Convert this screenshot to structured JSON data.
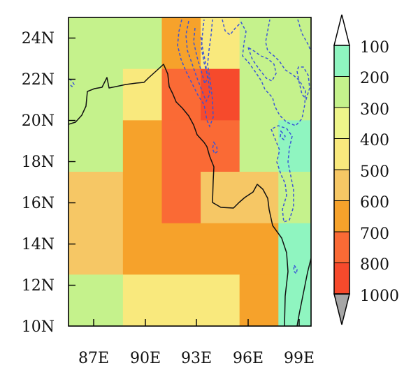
{
  "map": {
    "lat_ticks": [
      "24N",
      "22N",
      "20N",
      "18N",
      "16N",
      "14N",
      "12N",
      "10N"
    ],
    "lon_ticks": [
      "87E",
      "90E",
      "93E",
      "96E",
      "99E"
    ],
    "lat_range": [
      10,
      25
    ],
    "lon_range": [
      84.0,
      99.6
    ],
    "grid_spacing_deg": 2.5,
    "gridlines": false,
    "cells": [
      {
        "lon0": 84.0,
        "lon1": 87.5,
        "lat0": 22.5,
        "lat1": 25.0,
        "bin": 2
      },
      {
        "lon0": 87.5,
        "lon1": 90.0,
        "lat0": 22.5,
        "lat1": 25.0,
        "bin": 2
      },
      {
        "lon0": 90.0,
        "lon1": 92.5,
        "lat0": 22.5,
        "lat1": 25.0,
        "bin": 6
      },
      {
        "lon0": 92.5,
        "lon1": 95.0,
        "lat0": 22.5,
        "lat1": 25.0,
        "bin": 4
      },
      {
        "lon0": 95.0,
        "lon1": 99.6,
        "lat0": 22.5,
        "lat1": 25.0,
        "bin": 2
      },
      {
        "lon0": 84.0,
        "lon1": 87.5,
        "lat0": 20.0,
        "lat1": 22.5,
        "bin": 2
      },
      {
        "lon0": 87.5,
        "lon1": 90.0,
        "lat0": 20.0,
        "lat1": 22.5,
        "bin": 4
      },
      {
        "lon0": 90.0,
        "lon1": 92.5,
        "lat0": 20.0,
        "lat1": 22.5,
        "bin": 7
      },
      {
        "lon0": 92.5,
        "lon1": 95.0,
        "lat0": 20.0,
        "lat1": 22.5,
        "bin": 8
      },
      {
        "lon0": 95.0,
        "lon1": 99.6,
        "lat0": 20.0,
        "lat1": 22.5,
        "bin": 2
      },
      {
        "lon0": 84.0,
        "lon1": 87.5,
        "lat0": 17.5,
        "lat1": 20.0,
        "bin": 2
      },
      {
        "lon0": 87.5,
        "lon1": 90.0,
        "lat0": 17.5,
        "lat1": 20.0,
        "bin": 6
      },
      {
        "lon0": 90.0,
        "lon1": 95.0,
        "lat0": 17.5,
        "lat1": 20.0,
        "bin": 7
      },
      {
        "lon0": 95.0,
        "lon1": 97.5,
        "lat0": 17.5,
        "lat1": 20.0,
        "bin": 2
      },
      {
        "lon0": 97.5,
        "lon1": 99.6,
        "lat0": 17.5,
        "lat1": 20.0,
        "bin": 1
      },
      {
        "lon0": 84.0,
        "lon1": 87.5,
        "lat0": 15.0,
        "lat1": 17.5,
        "bin": 5
      },
      {
        "lon0": 87.5,
        "lon1": 90.0,
        "lat0": 15.0,
        "lat1": 17.5,
        "bin": 6
      },
      {
        "lon0": 90.0,
        "lon1": 92.5,
        "lat0": 15.0,
        "lat1": 17.5,
        "bin": 7
      },
      {
        "lon0": 92.5,
        "lon1": 97.5,
        "lat0": 15.0,
        "lat1": 17.5,
        "bin": 5
      },
      {
        "lon0": 97.5,
        "lon1": 99.6,
        "lat0": 15.0,
        "lat1": 17.5,
        "bin": 2
      },
      {
        "lon0": 84.0,
        "lon1": 87.5,
        "lat0": 12.5,
        "lat1": 15.0,
        "bin": 5
      },
      {
        "lon0": 87.5,
        "lon1": 97.5,
        "lat0": 12.5,
        "lat1": 15.0,
        "bin": 6
      },
      {
        "lon0": 97.5,
        "lon1": 99.6,
        "lat0": 12.5,
        "lat1": 15.0,
        "bin": 1
      },
      {
        "lon0": 84.0,
        "lon1": 87.5,
        "lat0": 10.0,
        "lat1": 12.5,
        "bin": 2
      },
      {
        "lon0": 87.5,
        "lon1": 95.0,
        "lat0": 10.0,
        "lat1": 12.5,
        "bin": 4
      },
      {
        "lon0": 95.0,
        "lon1": 97.5,
        "lat0": 10.0,
        "lat1": 12.5,
        "bin": 6
      },
      {
        "lon0": 97.5,
        "lon1": 99.6,
        "lat0": 10.0,
        "lat1": 12.5,
        "bin": 1
      }
    ],
    "coastline_color": "#111111",
    "contour_color": "#3a55d6",
    "contour_style": "dashed"
  },
  "colorbar": {
    "labels": [
      "100",
      "200",
      "300",
      "400",
      "500",
      "600",
      "700",
      "800",
      "1000"
    ],
    "colors": [
      "#8ff5c0",
      "#c5f28c",
      "#eef58a",
      "#f9e97d",
      "#f6c765",
      "#f6a22b",
      "#fa6a35",
      "#f64a2c"
    ],
    "top_extend_color": "#ffffff",
    "bottom_extend_color": "#a6a6a6"
  }
}
